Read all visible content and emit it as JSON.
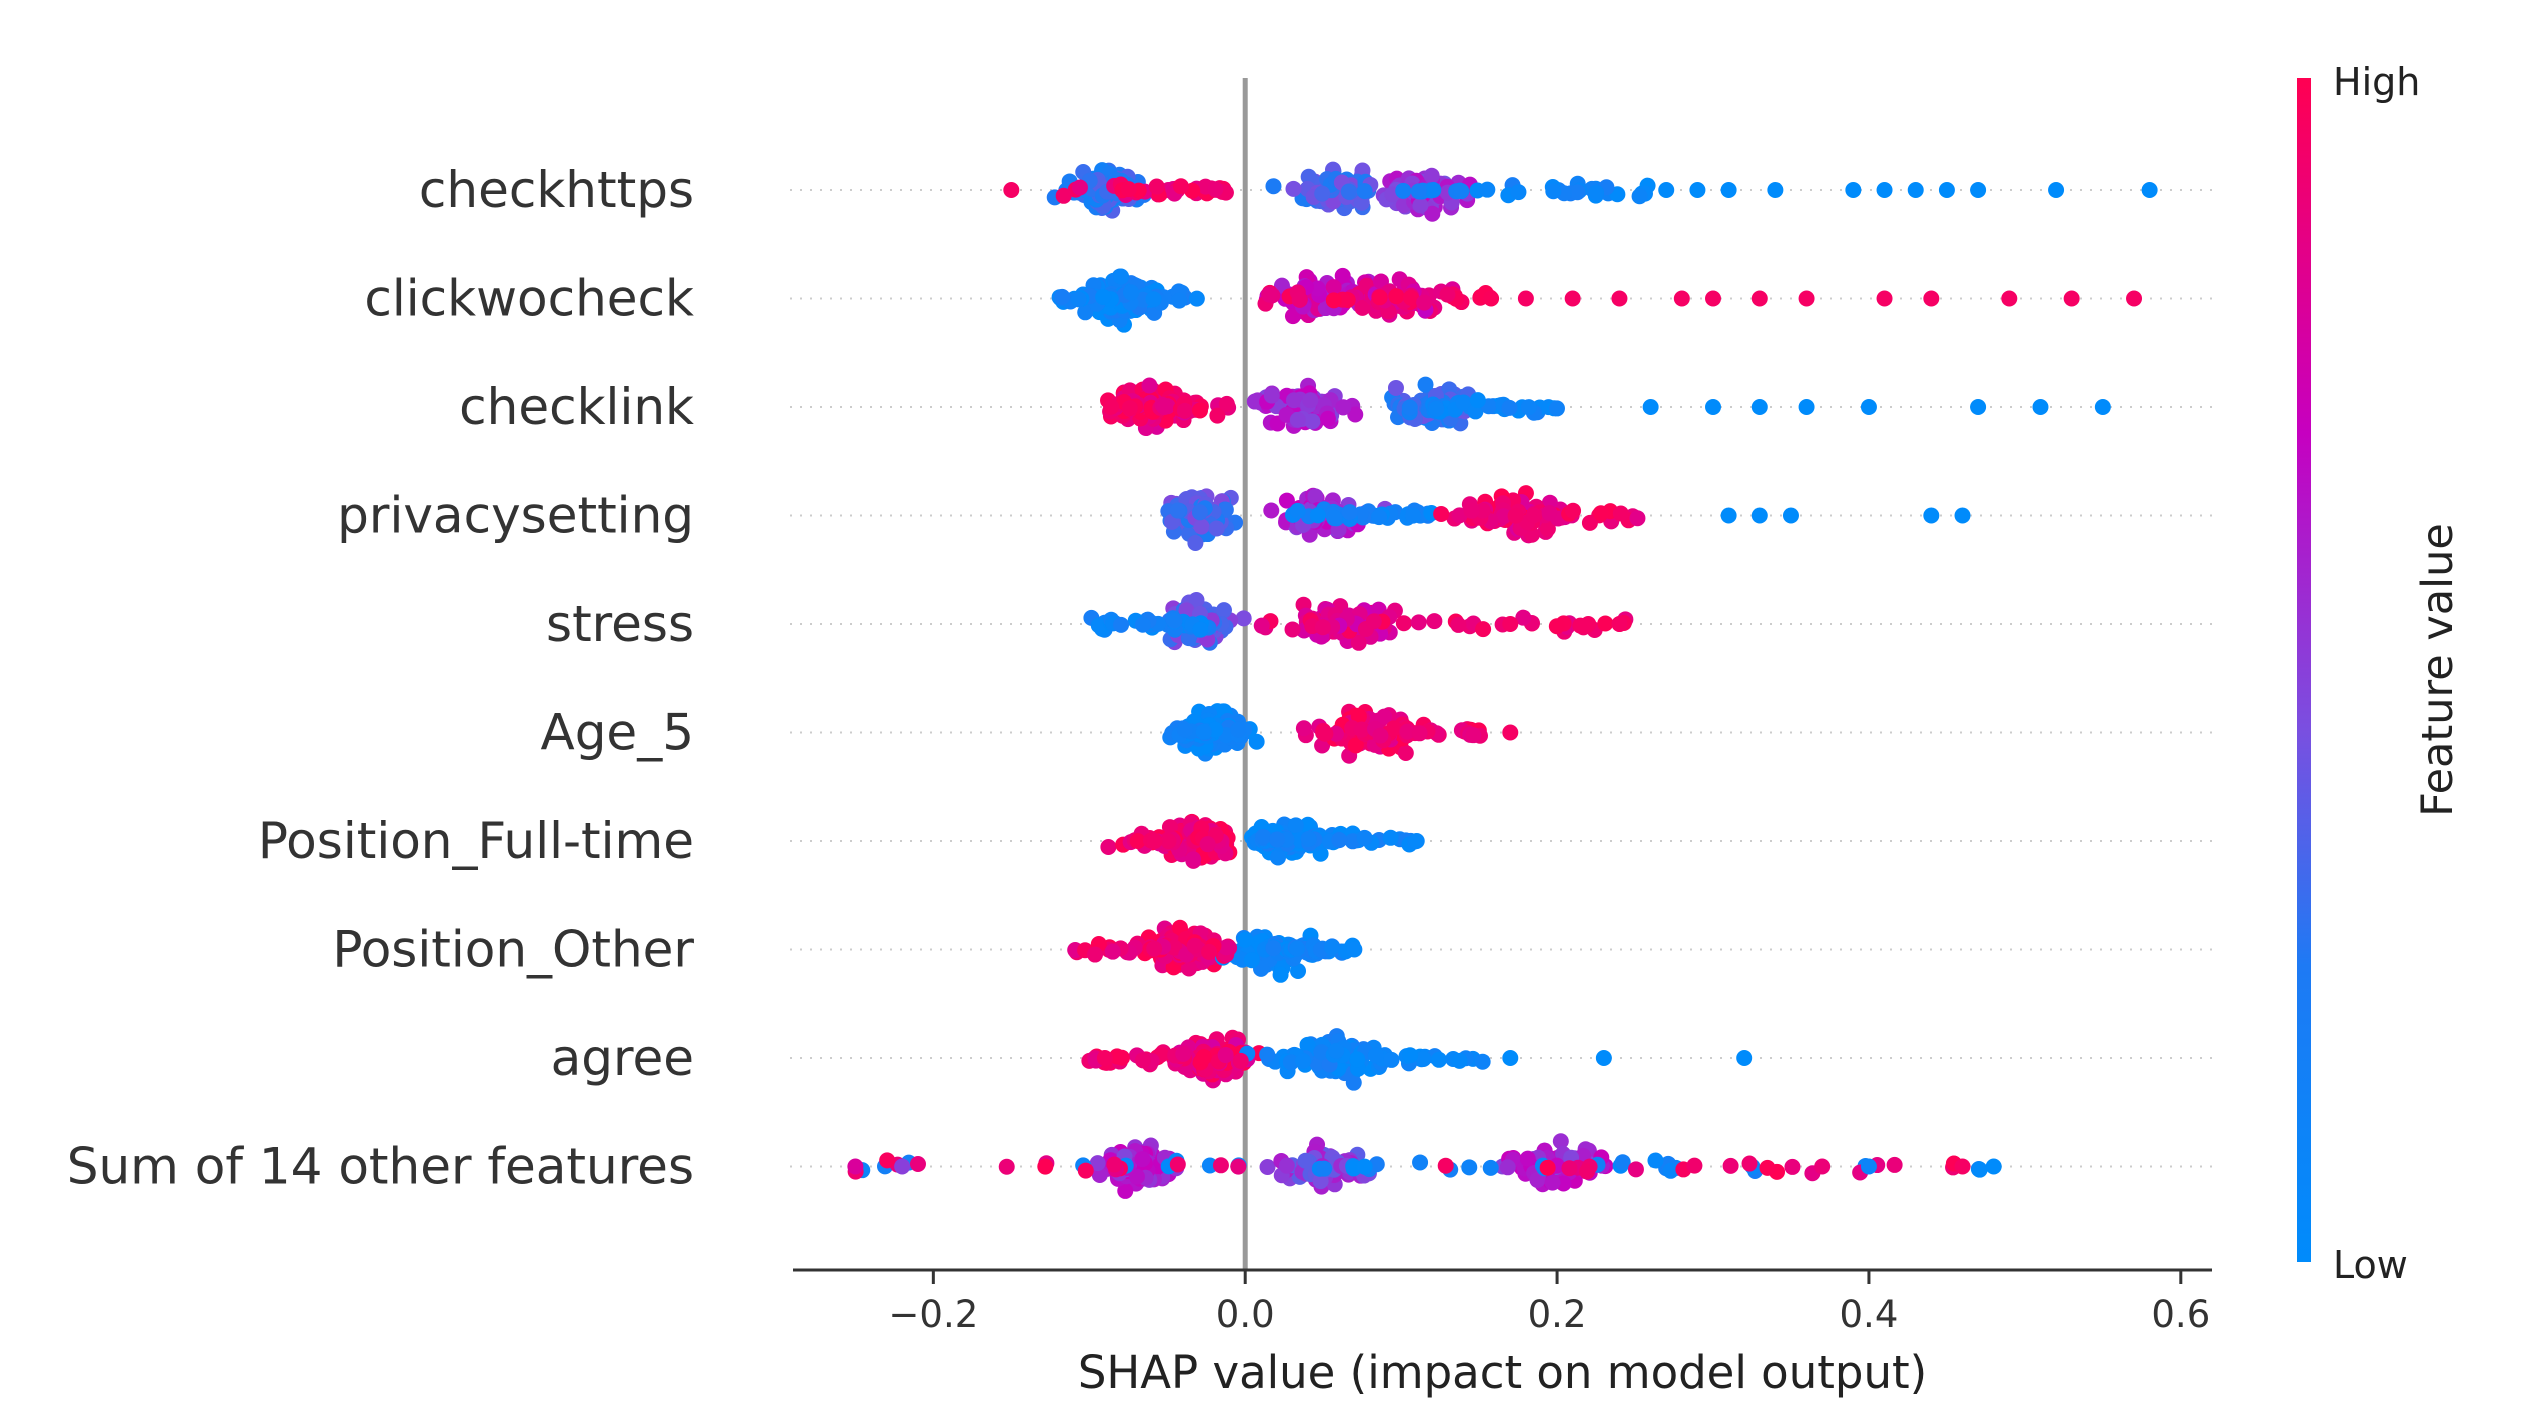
{
  "chart_data": {
    "type": "scatter",
    "subtype": "shap-beeswarm",
    "title": "",
    "xlabel": "SHAP value (impact on model output)",
    "ylabel": "",
    "xlim": [
      -0.29,
      0.62
    ],
    "xticks": [
      -0.2,
      0.0,
      0.2,
      0.4,
      0.6
    ],
    "xtick_labels": [
      "−0.2",
      "0.0",
      "0.2",
      "0.4",
      "0.6"
    ],
    "zero_line": 0.0,
    "colorbar": {
      "title": "Feature value",
      "high_label": "High",
      "low_label": "Low",
      "colors": [
        "#008bfb",
        "#7a4fe0",
        "#c600c0",
        "#ff0052"
      ]
    },
    "features": [
      {
        "name": "checkhttps",
        "low_shap_range": [
          0.1,
          0.26
        ],
        "high_shap_range": [
          -0.12,
          -0.01
        ],
        "clusters": [
          [
            -0.09,
            0.25
          ],
          [
            0.06,
            0.35
          ],
          [
            0.12,
            0.55
          ]
        ],
        "outliers": [
          [
            -0.15,
            0.95
          ],
          [
            0.27,
            0.02
          ],
          [
            0.29,
            0.0
          ],
          [
            0.31,
            0.0
          ],
          [
            0.34,
            0.0
          ],
          [
            0.39,
            0.0
          ],
          [
            0.41,
            0.0
          ],
          [
            0.43,
            0.0
          ],
          [
            0.45,
            0.0
          ],
          [
            0.47,
            0.0
          ],
          [
            0.52,
            0.0
          ],
          [
            0.58,
            0.0
          ]
        ]
      },
      {
        "name": "clickwocheck",
        "low_shap_range": [
          -0.12,
          -0.03
        ],
        "high_shap_range": [
          0.01,
          0.16
        ],
        "clusters": [
          [
            -0.08,
            0.1
          ],
          [
            0.05,
            0.7
          ],
          [
            0.1,
            0.8
          ]
        ],
        "outliers": [
          [
            0.18,
            0.95
          ],
          [
            0.21,
            0.95
          ],
          [
            0.24,
            0.95
          ],
          [
            0.28,
            0.95
          ],
          [
            0.3,
            0.95
          ],
          [
            0.33,
            0.95
          ],
          [
            0.36,
            0.95
          ],
          [
            0.41,
            0.95
          ],
          [
            0.44,
            0.95
          ],
          [
            0.49,
            0.95
          ],
          [
            0.53,
            0.95
          ],
          [
            0.57,
            0.95
          ]
        ]
      },
      {
        "name": "checklink",
        "low_shap_range": [
          0.1,
          0.2
        ],
        "high_shap_range": [
          -0.09,
          -0.01
        ],
        "clusters": [
          [
            -0.06,
            0.92
          ],
          [
            0.04,
            0.6
          ],
          [
            0.12,
            0.3
          ]
        ],
        "outliers": [
          [
            0.26,
            0.0
          ],
          [
            0.3,
            0.0
          ],
          [
            0.33,
            0.0
          ],
          [
            0.36,
            0.0
          ],
          [
            0.4,
            0.0
          ],
          [
            0.47,
            0.0
          ],
          [
            0.51,
            0.0
          ],
          [
            0.55,
            0.0
          ]
        ]
      },
      {
        "name": "privacysetting",
        "low_shap_range": [
          0.03,
          0.12
        ],
        "high_shap_range": [
          0.12,
          0.26
        ],
        "clusters": [
          [
            -0.03,
            0.35
          ],
          [
            0.05,
            0.6
          ],
          [
            0.18,
            0.9
          ]
        ],
        "outliers": [
          [
            0.31,
            0.0
          ],
          [
            0.33,
            0.0
          ],
          [
            0.35,
            0.0
          ],
          [
            0.44,
            0.0
          ],
          [
            0.46,
            0.0
          ]
        ]
      },
      {
        "name": "stress",
        "low_shap_range": [
          -0.1,
          -0.02
        ],
        "high_shap_range": [
          0.01,
          0.25
        ],
        "clusters": [
          [
            -0.03,
            0.4
          ],
          [
            0.06,
            0.85
          ]
        ],
        "outliers": [
          [
            0.17,
            0.95
          ],
          [
            0.22,
            0.95
          ],
          [
            0.24,
            0.95
          ]
        ]
      },
      {
        "name": "Age_5",
        "low_shap_range": [
          -0.05,
          0.0
        ],
        "high_shap_range": [
          0.03,
          0.17
        ],
        "clusters": [
          [
            -0.02,
            0.05
          ],
          [
            0.08,
            0.95
          ]
        ],
        "outliers": [
          [
            0.17,
            0.95
          ]
        ]
      },
      {
        "name": "Position_Full-time",
        "low_shap_range": [
          0.01,
          0.11
        ],
        "high_shap_range": [
          -0.09,
          -0.01
        ],
        "clusters": [
          [
            -0.03,
            0.95
          ],
          [
            0.03,
            0.05
          ]
        ],
        "outliers": [
          [
            0.11,
            0.05
          ]
        ]
      },
      {
        "name": "Position_Other",
        "low_shap_range": [
          0.01,
          0.07
        ],
        "high_shap_range": [
          -0.11,
          -0.01
        ],
        "clusters": [
          [
            -0.04,
            0.95
          ],
          [
            0.02,
            0.05
          ]
        ],
        "outliers": [
          [
            0.07,
            0.05
          ]
        ]
      },
      {
        "name": "agree",
        "low_shap_range": [
          0.0,
          0.17
        ],
        "high_shap_range": [
          -0.1,
          0.0
        ],
        "clusters": [
          [
            -0.02,
            0.9
          ],
          [
            0.06,
            0.1
          ]
        ],
        "outliers": [
          [
            -0.09,
            0.95
          ],
          [
            0.17,
            0.0
          ],
          [
            0.23,
            0.0
          ],
          [
            0.32,
            0.0
          ]
        ]
      },
      {
        "name": "Sum of 14 other features",
        "low_shap_range": [
          -0.25,
          0.48
        ],
        "high_shap_range": [
          -0.25,
          0.46
        ],
        "clusters": [
          [
            -0.07,
            0.6
          ],
          [
            0.05,
            0.5
          ],
          [
            0.2,
            0.6
          ]
        ],
        "outliers": [
          [
            -0.25,
            0.8
          ],
          [
            -0.22,
            0.5
          ],
          [
            0.37,
            0.9
          ],
          [
            0.4,
            0.1
          ],
          [
            0.46,
            0.95
          ],
          [
            0.48,
            0.0
          ]
        ]
      }
    ]
  }
}
